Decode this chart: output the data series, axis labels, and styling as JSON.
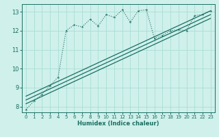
{
  "xlabel": "Humidex (Indice chaleur)",
  "bg_color": "#cff0eb",
  "grid_color": "#aaddd6",
  "line_color": "#1a6e62",
  "xlim": [
    -0.5,
    23.5
  ],
  "ylim": [
    7.7,
    13.4
  ],
  "xticks": [
    0,
    1,
    2,
    3,
    4,
    5,
    6,
    7,
    8,
    9,
    10,
    11,
    12,
    13,
    14,
    15,
    16,
    17,
    18,
    19,
    20,
    21,
    22,
    23
  ],
  "yticks": [
    8,
    9,
    10,
    11,
    12,
    13
  ],
  "scatter_x": [
    0,
    1,
    2,
    3,
    4,
    5,
    6,
    7,
    8,
    9,
    10,
    11,
    12,
    13,
    14,
    15,
    16,
    17,
    18,
    19,
    20,
    21,
    22,
    23
  ],
  "scatter_y": [
    7.85,
    8.3,
    8.65,
    9.1,
    9.55,
    12.0,
    12.3,
    12.2,
    12.6,
    12.25,
    12.85,
    12.7,
    13.1,
    12.45,
    13.05,
    13.1,
    11.6,
    11.75,
    12.0,
    12.05,
    12.0,
    12.8,
    12.85,
    13.05
  ],
  "reg_lines": [
    {
      "x": [
        0,
        23
      ],
      "y": [
        8.55,
        13.05
      ]
    },
    {
      "x": [
        0,
        23
      ],
      "y": [
        8.35,
        12.85
      ]
    },
    {
      "x": [
        0,
        23
      ],
      "y": [
        8.15,
        12.65
      ]
    }
  ]
}
